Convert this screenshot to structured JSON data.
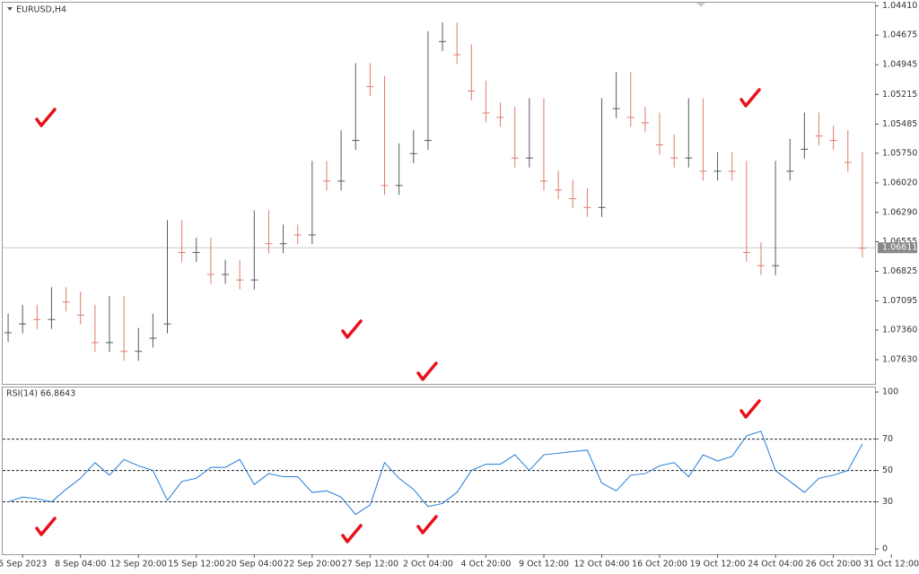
{
  "chart_data": [
    {
      "type": "candlestick",
      "title": "EURUSD,H4",
      "up_color": "#e07b6a",
      "down_color": "#5a5a5a",
      "x": [
        -4,
        0,
        4,
        8,
        12,
        16,
        20,
        24,
        28,
        32,
        36,
        40,
        44,
        48,
        52,
        56,
        60,
        64,
        68,
        72,
        76,
        80,
        84,
        88,
        92,
        96,
        100,
        104,
        108,
        112,
        116,
        120,
        124,
        128,
        132,
        136,
        140,
        144,
        148,
        152,
        156,
        160,
        164,
        168,
        172,
        176,
        180,
        184,
        188,
        192,
        196,
        200,
        204,
        208,
        212,
        216,
        220,
        224,
        228,
        232
      ],
      "open": [
        1.0738,
        1.073,
        1.0722,
        1.0726,
        1.0706,
        1.071,
        1.0722,
        1.0747,
        1.0714,
        1.0755,
        1.0743,
        1.073,
        1.0645,
        1.0665,
        1.0661,
        1.0685,
        1.0681,
        1.069,
        1.0636,
        1.0657,
        1.0649,
        1.0649,
        1.0591,
        1.06,
        1.0563,
        1.0502,
        1.0514,
        1.0604,
        1.0575,
        1.0563,
        1.0473,
        1.0465,
        1.0485,
        1.0518,
        1.0538,
        1.0542,
        1.0579,
        1.0534,
        1.06,
        1.0608,
        1.0616,
        1.0624,
        1.0534,
        1.051,
        1.0542,
        1.0547,
        1.0567,
        1.0579,
        1.0534,
        1.0591,
        1.0583,
        1.0591,
        1.0665,
        1.0677,
        1.0591,
        1.0571,
        1.0547,
        1.0559,
        1.0563,
        1.0583
      ],
      "high": [
        1.0747,
        1.0739,
        1.0735,
        1.0735,
        1.0719,
        1.0731,
        1.0756,
        1.0756,
        1.0764,
        1.0764,
        1.0752,
        1.0739,
        1.0674,
        1.0674,
        1.0694,
        1.0694,
        1.0699,
        1.0699,
        1.0666,
        1.0666,
        1.0658,
        1.0658,
        1.0609,
        1.0609,
        1.0572,
        1.0523,
        1.0613,
        1.0613,
        1.0584,
        1.0572,
        1.0482,
        1.0494,
        1.0527,
        1.0547,
        1.0551,
        1.0588,
        1.0588,
        1.0609,
        1.0617,
        1.0625,
        1.0633,
        1.0633,
        1.0543,
        1.0551,
        1.0556,
        1.0576,
        1.0588,
        1.0588,
        1.06,
        1.06,
        1.06,
        1.0674,
        1.0686,
        1.0686,
        1.06,
        1.058,
        1.0568,
        1.0572,
        1.0592,
        1.067
      ],
      "low": [
        1.0721,
        1.0713,
        1.0713,
        1.0697,
        1.0697,
        1.0701,
        1.0713,
        1.0705,
        1.0705,
        1.0734,
        1.0721,
        1.0636,
        1.0636,
        1.0652,
        1.0652,
        1.0672,
        1.0672,
        1.0627,
        1.0627,
        1.064,
        1.064,
        1.0582,
        1.0582,
        1.0554,
        1.0493,
        1.0493,
        1.0505,
        1.0566,
        1.0554,
        1.0464,
        1.0456,
        1.0456,
        1.0476,
        1.0509,
        1.0529,
        1.0533,
        1.0525,
        1.0525,
        1.0591,
        1.0599,
        1.0607,
        1.0525,
        1.0501,
        1.0501,
        1.0533,
        1.0538,
        1.0558,
        1.0525,
        1.0525,
        1.0574,
        1.0574,
        1.0582,
        1.0656,
        1.0582,
        1.0562,
        1.0538,
        1.0538,
        1.055,
        1.0554,
        1.0574
      ],
      "close": [
        1.073,
        1.0722,
        1.0726,
        1.0706,
        1.071,
        1.0722,
        1.0747,
        1.0714,
        1.0755,
        1.0743,
        1.073,
        1.0645,
        1.0665,
        1.0661,
        1.0685,
        1.0681,
        1.069,
        1.0636,
        1.0657,
        1.0649,
        1.0649,
        1.0591,
        1.06,
        1.0563,
        1.0502,
        1.0514,
        1.0604,
        1.0575,
        1.0563,
        1.0473,
        1.0465,
        1.0485,
        1.0518,
        1.0538,
        1.0542,
        1.0579,
        1.0534,
        1.06,
        1.0608,
        1.0616,
        1.0624,
        1.0534,
        1.051,
        1.0542,
        1.0547,
        1.0567,
        1.0579,
        1.0534,
        1.0591,
        1.0583,
        1.0591,
        1.0665,
        1.0677,
        1.0591,
        1.0571,
        1.0547,
        1.0559,
        1.0563,
        1.0583,
        1.06611
      ],
      "current_price": 1.06611,
      "xlim": [
        -5.5,
        235.5
      ],
      "ylim": [
        1.0785,
        1.0438
      ],
      "yticks": [
        {
          "value": 1.0763,
          "label": "1.07630"
        },
        {
          "value": 1.0736,
          "label": "1.07360"
        },
        1.07095,
        1.06825,
        1.06555,
        {
          "value": 1.0629,
          "label": "1.06290"
        },
        {
          "value": 1.0602,
          "label": "1.06020"
        },
        {
          "value": 1.0575,
          "label": "1.05750"
        },
        1.05485,
        1.05215,
        1.04945,
        1.04675,
        {
          "value": 1.0441,
          "label": "1.04410"
        }
      ],
      "xticks": [
        {
          "value": 0,
          "label": "5 Sep 2023"
        },
        {
          "value": 16,
          "label": "8 Sep 04:00"
        },
        {
          "value": 32,
          "label": "12 Sep 20:00"
        },
        {
          "value": 48,
          "label": "15 Sep 12:00"
        },
        {
          "value": 64,
          "label": "20 Sep 04:00"
        },
        {
          "value": 80,
          "label": "22 Sep 20:00"
        },
        {
          "value": 96,
          "label": "27 Sep 12:00"
        },
        {
          "value": 112,
          "label": "2 Oct 04:00"
        },
        {
          "value": 128,
          "label": "4 Oct 20:00"
        },
        {
          "value": 144,
          "label": "9 Oct 12:00"
        },
        {
          "value": 160,
          "label": "12 Oct 04:00"
        },
        {
          "value": 176,
          "label": "16 Oct 20:00"
        },
        {
          "value": 192,
          "label": "19 Oct 12:00"
        },
        {
          "value": 208,
          "label": "24 Oct 04:00"
        },
        {
          "value": 224,
          "label": "26 Oct 20:00"
        },
        {
          "value": 240,
          "label": "31 Oct 12:00"
        }
      ]
    },
    {
      "type": "line",
      "title": "RSI(14) 66.8643",
      "color": "#1e7bd8",
      "x": [
        -4,
        0,
        4,
        8,
        12,
        16,
        20,
        24,
        28,
        32,
        36,
        40,
        44,
        48,
        52,
        56,
        60,
        64,
        68,
        72,
        76,
        80,
        84,
        88,
        92,
        96,
        100,
        104,
        108,
        112,
        116,
        120,
        124,
        128,
        132,
        136,
        140,
        144,
        148,
        152,
        156,
        160,
        164,
        168,
        172,
        176,
        180,
        184,
        188,
        192,
        196,
        200,
        204,
        208,
        212,
        216,
        220,
        224,
        228,
        232
      ],
      "values": [
        30,
        33,
        32,
        30,
        38,
        45,
        55,
        47,
        57,
        53,
        50,
        31,
        43,
        45,
        52,
        52,
        57,
        41,
        48,
        46,
        46,
        36,
        37,
        33,
        22,
        28,
        55,
        45,
        38,
        27,
        29,
        36,
        50,
        54,
        54,
        60,
        50,
        60,
        61,
        62,
        63,
        42,
        37,
        47,
        48,
        53,
        55,
        46,
        60,
        56,
        59,
        72,
        75,
        50,
        43,
        36,
        45,
        47,
        50,
        66.8643
      ],
      "ylim": [
        -3.4,
        102.9
      ],
      "yticks": [
        100,
        70,
        50,
        30,
        0
      ],
      "levels": [
        70,
        50,
        30
      ]
    }
  ]
}
